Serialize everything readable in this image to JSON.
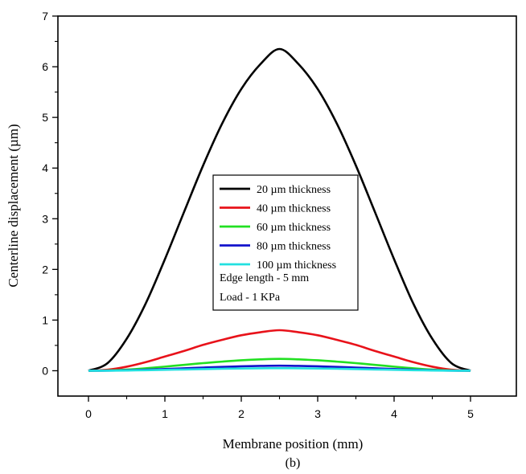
{
  "chart_data": {
    "type": "line",
    "title": "",
    "caption": "(b)",
    "xlabel": "Membrane position (mm)",
    "ylabel": "Centerline displacement (µm)",
    "xlim": [
      -0.4,
      5.6
    ],
    "ylim": [
      -0.5,
      7
    ],
    "xticks": [
      0,
      1,
      2,
      3,
      4,
      5
    ],
    "yticks": [
      0,
      1,
      2,
      3,
      4,
      5,
      6,
      7
    ],
    "grid": false,
    "legend_position": "center",
    "x": [
      0,
      0.25,
      0.5,
      0.75,
      1,
      1.25,
      1.5,
      1.75,
      2,
      2.25,
      2.5,
      2.75,
      3,
      3.25,
      3.5,
      3.75,
      4,
      4.25,
      4.5,
      4.75,
      5
    ],
    "series": [
      {
        "name": "20 µm thickness",
        "color": "#000000",
        "values": [
          0,
          0.15,
          0.63,
          1.33,
          2.2,
          3.13,
          4.05,
          4.88,
          5.56,
          6.05,
          6.35,
          6.05,
          5.56,
          4.88,
          4.05,
          3.13,
          2.2,
          1.33,
          0.63,
          0.15,
          0
        ]
      },
      {
        "name": "40 µm thickness",
        "color": "#e8121a",
        "values": [
          0,
          0.02,
          0.08,
          0.17,
          0.28,
          0.39,
          0.51,
          0.61,
          0.7,
          0.76,
          0.8,
          0.76,
          0.7,
          0.61,
          0.51,
          0.39,
          0.28,
          0.17,
          0.08,
          0.02,
          0
        ]
      },
      {
        "name": "60 µm thickness",
        "color": "#22e022",
        "values": [
          0,
          0.006,
          0.023,
          0.049,
          0.081,
          0.116,
          0.15,
          0.18,
          0.206,
          0.224,
          0.235,
          0.224,
          0.206,
          0.18,
          0.15,
          0.116,
          0.081,
          0.049,
          0.023,
          0.006,
          0
        ]
      },
      {
        "name": "80 µm thickness",
        "color": "#1212cc",
        "values": [
          0,
          0.002,
          0.01,
          0.021,
          0.034,
          0.049,
          0.063,
          0.076,
          0.087,
          0.095,
          0.1,
          0.095,
          0.087,
          0.076,
          0.063,
          0.049,
          0.034,
          0.021,
          0.01,
          0.002,
          0
        ]
      },
      {
        "name": "100 µm thickness",
        "color": "#22e0e0",
        "values": [
          0,
          0.001,
          0.005,
          0.011,
          0.018,
          0.025,
          0.032,
          0.039,
          0.044,
          0.048,
          0.05,
          0.048,
          0.044,
          0.039,
          0.032,
          0.025,
          0.018,
          0.011,
          0.005,
          0.001,
          0
        ]
      }
    ],
    "annotations": [
      "Edge length - 5 mm",
      "Load - 1 KPa"
    ]
  }
}
